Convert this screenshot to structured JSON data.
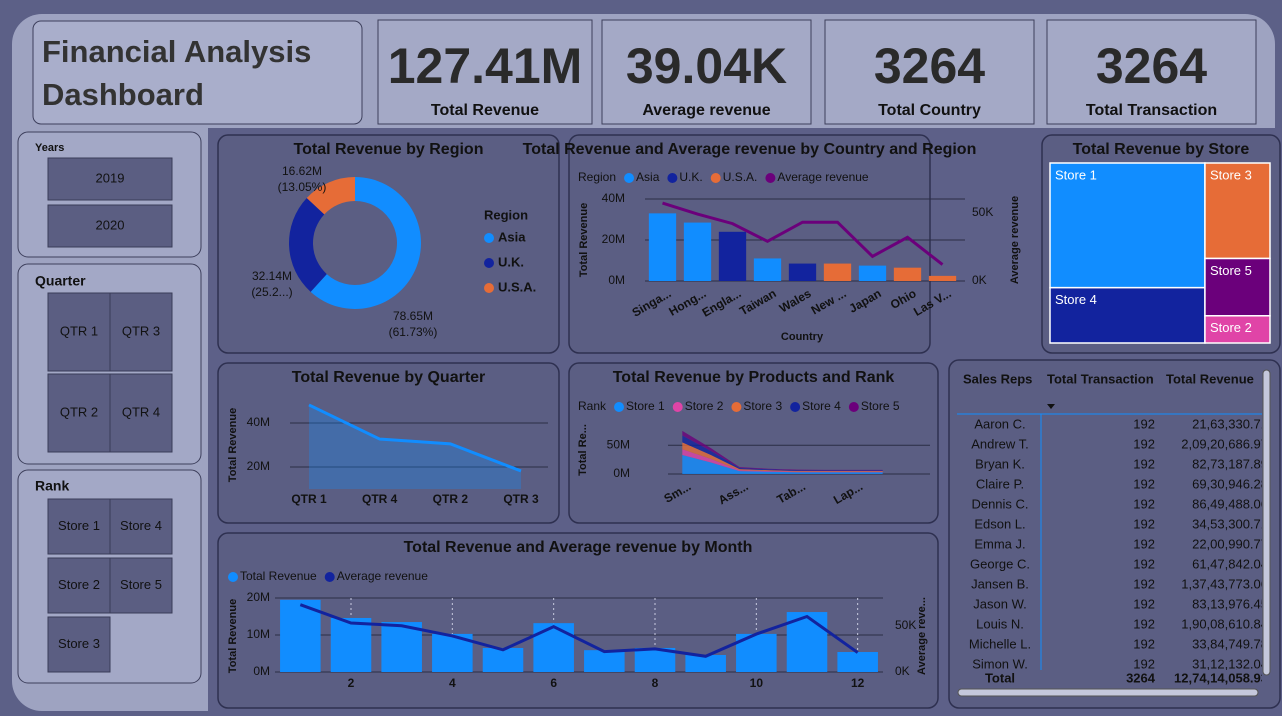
{
  "header": {
    "title": "Financial Analysis Dashboard"
  },
  "kpis": [
    {
      "value": "127.41M",
      "label": "Total Revenue"
    },
    {
      "value": "39.04K",
      "label": "Average revenue"
    },
    {
      "value": "3264",
      "label": "Total Country"
    },
    {
      "value": "3264",
      "label": "Total Transaction"
    }
  ],
  "slicers": [
    {
      "title": "Years",
      "options": [
        "2019",
        "2020"
      ]
    },
    {
      "title": "Quarter",
      "options": [
        "QTR 1",
        "QTR 3",
        "QTR 2",
        "QTR 4"
      ]
    },
    {
      "title": "Rank",
      "options": [
        "Store 1",
        "Store 4",
        "Store 2",
        "Store 5",
        "Store 3"
      ]
    }
  ],
  "table": {
    "columns": [
      "Sales Reps",
      "Total Transaction",
      "Total Revenue"
    ],
    "rows": [
      [
        "Aaron C.",
        192,
        "21,63,330.71"
      ],
      [
        "Andrew T.",
        192,
        "2,09,20,686.97"
      ],
      [
        "Bryan K.",
        192,
        "82,73,187.89"
      ],
      [
        "Claire P.",
        192,
        "69,30,946.28"
      ],
      [
        "Dennis C.",
        192,
        "86,49,488.06"
      ],
      [
        "Edson L.",
        192,
        "34,53,300.71"
      ],
      [
        "Emma J.",
        192,
        "22,00,990.77"
      ],
      [
        "George C.",
        192,
        "61,47,842.04"
      ],
      [
        "Jansen B.",
        192,
        "1,37,43,773.06"
      ],
      [
        "Jason W.",
        192,
        "83,13,976.45"
      ],
      [
        "Louis N.",
        192,
        "1,90,08,610.84"
      ],
      [
        "Michelle L.",
        192,
        "33,84,749.78"
      ],
      [
        "Simon W.",
        192,
        "31,12,132.04"
      ]
    ],
    "total": [
      "Total",
      3264,
      "12,74,14,058.93"
    ]
  },
  "chart_data": [
    {
      "type": "donut",
      "title": "Total Revenue by Region",
      "legend_title": "Region",
      "categories": [
        "Asia",
        "U.K.",
        "U.S.A."
      ],
      "values": [
        78.65,
        32.14,
        16.62
      ],
      "value_labels": [
        "78.65M",
        "32.14M",
        "16.62M"
      ],
      "percent_labels": [
        "(61.73%)",
        "(25.2...)",
        "(13.05%)"
      ],
      "colors": [
        "#118dff",
        "#12239e",
        "#e66c37"
      ]
    },
    {
      "type": "combo",
      "title": "Total Revenue and Average revenue by Country and Region",
      "legend_title": "Region",
      "x_label": "Country",
      "y_label": "Total Revenue",
      "y2_label": "Average revenue",
      "categories": [
        "Singa...",
        "Hong...",
        "Engla...",
        "Taiwan",
        "Wales",
        "New ...",
        "Japan",
        "Ohio",
        "Las V..."
      ],
      "series": [
        {
          "name": "Asia",
          "color": "#118dff",
          "values": [
            33,
            28.5,
            null,
            11,
            null,
            null,
            7.5,
            null,
            null
          ]
        },
        {
          "name": "U.K.",
          "color": "#12239e",
          "values": [
            null,
            null,
            24,
            null,
            8.5,
            null,
            null,
            null,
            null
          ]
        },
        {
          "name": "U.S.A.",
          "color": "#e66c37",
          "values": [
            null,
            null,
            null,
            null,
            null,
            8.5,
            null,
            6.5,
            2.5
          ]
        },
        {
          "name": "Average revenue",
          "color": "#6b007b",
          "type": "line",
          "axis": "y2",
          "values": [
            57,
            49,
            42,
            29,
            43,
            43,
            18,
            32,
            12
          ]
        }
      ],
      "ylim": [
        0,
        40
      ],
      "yticks": [
        {
          "value": 0,
          "label": "0M"
        },
        {
          "value": 20,
          "label": "20M"
        },
        {
          "value": 40,
          "label": "40M"
        }
      ],
      "y2lim": [
        0,
        60
      ],
      "y2ticks": [
        {
          "value": 0,
          "label": "0K"
        },
        {
          "value": 50,
          "label": "50K"
        }
      ],
      "grid": true
    },
    {
      "type": "treemap",
      "title": "Total Revenue by Store",
      "categories": [
        "Store 1",
        "Store 4",
        "Store 3",
        "Store 5",
        "Store 2"
      ],
      "values": [
        62.2,
        27.6,
        20.0,
        12.0,
        5.7
      ],
      "colors": [
        "#118dff",
        "#12239e",
        "#e66c37",
        "#6b007b",
        "#e044a7"
      ]
    },
    {
      "type": "area",
      "title": "Total Revenue by Quarter",
      "y_label": "Total Revenue",
      "categories": [
        "QTR 1",
        "QTR 4",
        "QTR 2",
        "QTR 3"
      ],
      "values": [
        48.2,
        32.7,
        30.5,
        18.2
      ],
      "color": "#118dff",
      "ylim": [
        10,
        50
      ],
      "yticks": [
        {
          "value": 20,
          "label": "20M"
        },
        {
          "value": 40,
          "label": "40M"
        }
      ],
      "grid": true
    },
    {
      "type": "ribbon",
      "title": "Total Revenue by Products and Rank",
      "legend_title": "Rank",
      "y_label": "Total Re...",
      "categories": [
        "Sm...",
        null,
        "Ass...",
        null,
        "Tab...",
        null,
        "Lap...",
        null
      ],
      "series": [
        {
          "name": "Store 1",
          "color": "#118dff",
          "values": [
            33,
            20,
            5,
            4,
            3,
            3,
            3,
            3
          ]
        },
        {
          "name": "Store 2",
          "color": "#e044a7",
          "values": [
            10,
            6,
            1.5,
            1.2,
            1,
            1,
            1,
            1
          ]
        },
        {
          "name": "Store 3",
          "color": "#e66c37",
          "values": [
            12,
            7,
            2,
            1.5,
            1.3,
            1.2,
            1.2,
            1.2
          ]
        },
        {
          "name": "Store 4",
          "color": "#12239e",
          "values": [
            12,
            7,
            2,
            1.5,
            1.3,
            1.2,
            1.2,
            1.2
          ]
        },
        {
          "name": "Store 5",
          "color": "#6b007b",
          "values": [
            8,
            5,
            1.5,
            1,
            1,
            0.8,
            0.8,
            0.8
          ]
        }
      ],
      "ylim": [
        0,
        80
      ],
      "yticks": [
        {
          "value": 0,
          "label": "0M"
        },
        {
          "value": 50,
          "label": "50M"
        }
      ],
      "grid": true
    },
    {
      "type": "combo",
      "title": "Total Revenue and Average revenue by Month",
      "y_label": "Total Revenue",
      "y2_label": "Average reve...",
      "x": [
        1,
        2,
        3,
        4,
        5,
        6,
        7,
        8,
        9,
        10,
        11,
        12
      ],
      "xlim": [
        0.5,
        12.5
      ],
      "xticks": [
        2,
        4,
        6,
        8,
        10,
        12
      ],
      "xgrid": true,
      "series": [
        {
          "name": "Total Revenue",
          "color": "#118dff",
          "values": [
            19.5,
            14.6,
            13.5,
            10.3,
            6.5,
            13.2,
            5.9,
            6.5,
            4.6,
            10.3,
            16.2,
            5.4
          ]
        },
        {
          "name": "Average revenue",
          "color": "#12239e",
          "type": "line",
          "axis": "y2",
          "values": [
            72.8,
            53,
            50,
            39,
            24,
            49,
            22,
            25,
            17,
            41,
            60,
            21
          ]
        }
      ],
      "ylim": [
        0,
        20
      ],
      "yticks": [
        {
          "value": 0,
          "label": "0M"
        },
        {
          "value": 10,
          "label": "10M"
        },
        {
          "value": 20,
          "label": "20M"
        }
      ],
      "y2lim": [
        0,
        80
      ],
      "y2ticks": [
        {
          "value": 0,
          "label": "0K"
        },
        {
          "value": 50,
          "label": "50K"
        }
      ],
      "grid": true
    }
  ]
}
